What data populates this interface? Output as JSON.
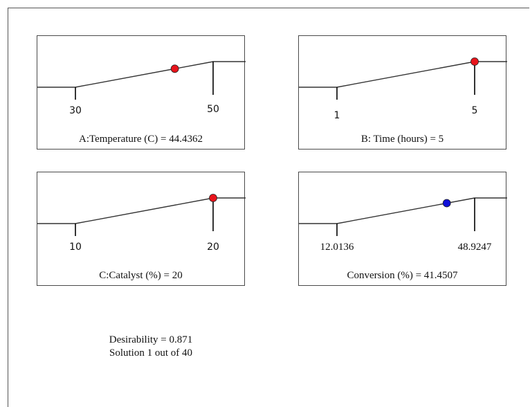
{
  "colors": {
    "factor_marker": "#e8141b",
    "response_marker": "#1010d8",
    "curve": "#333333"
  },
  "chart_data": [
    {
      "type": "line",
      "name": "A:Temperature (C)",
      "caption": "A:Temperature (C)  = 44.4362",
      "low": 30,
      "high": 50,
      "low_label": "30",
      "high_label": "50",
      "value": 44.4362,
      "marker": "factor"
    },
    {
      "type": "line",
      "name": "B: Time (hours)",
      "caption": "B: Time (hours) = 5",
      "low": 1,
      "high": 5,
      "low_label": "1",
      "high_label": "5",
      "value": 5,
      "marker": "factor"
    },
    {
      "type": "line",
      "name": "C:Catalyst (%)",
      "caption": "C:Catalyst (%) = 20",
      "low": 10,
      "high": 20,
      "low_label": "10",
      "high_label": "20",
      "value": 20,
      "marker": "factor"
    },
    {
      "type": "line",
      "name": "Conversion (%)",
      "caption": "Conversion (%) = 41.4507",
      "low": 12.0136,
      "high": 48.9247,
      "low_label": "12.0136",
      "high_label": "48.9247",
      "value": 41.4507,
      "marker": "response"
    }
  ],
  "summary": {
    "desirability": "Desirability = 0.871",
    "solution": "Solution 1 out of 40"
  }
}
